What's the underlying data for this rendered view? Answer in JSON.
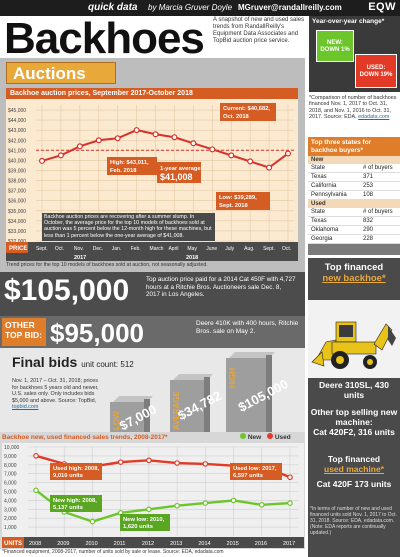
{
  "header": {
    "section": "quick data",
    "byline": "by Marcia Gruver Doyle",
    "email": "MGruver@randallreilly.com",
    "logo": "EQW"
  },
  "title": "Backhoes",
  "intro": "A snapshot of new and used sales trends from RandallReilly's Equipment Data Associates and TopBid auction price service.",
  "yoy": {
    "title": "Year-over-year change*",
    "new_label": "NEW:",
    "new_value": "DOWN 1%",
    "used_label": "USED:",
    "used_value": "DOWN 19%"
  },
  "comparison_note": "*Comparison of number of backhoes financed Nov. 1, 2017 to Oct. 31, 2018, and Nov. 1, 2016 to Oct. 31, 2017. Source: EDA,",
  "comparison_link": "edadata.com",
  "auctions": {
    "tab": "Auctions",
    "subtitle": "Backhoe auction prices, September 2017-October 2018",
    "callout_high": "High: $43,011, Feb. 2018",
    "callout_avg_label": "1-year average:",
    "callout_avg_value": "$41,008",
    "callout_current": "Current: $40,682, Oct. 2018",
    "callout_low": "Low: $39,289, Sept. 2018",
    "note": "Backhoe auction prices are recovering after a summer slump. In October, the average price for the top 10 models of backhoes sold at auction was 5 percent below the 12-month high for these machines, but less than 1 percent below the one-year average of $41,008.",
    "price_label": "PRICE",
    "year_2017": "2017",
    "year_2018": "2018",
    "footnote": "Trend prices for the top 10 models of backhoes sold at auction, not seasonally adjusted."
  },
  "chart_data": [
    {
      "type": "line",
      "title": "Backhoe auction prices, September 2017-October 2018",
      "categories": [
        "Sept.",
        "Oct.",
        "Nov.",
        "Dec.",
        "Jan.",
        "Feb.",
        "March",
        "April",
        "May",
        "June",
        "July",
        "Aug.",
        "Sept.",
        "Oct."
      ],
      "values": [
        39950,
        40500,
        41400,
        42000,
        42200,
        43011,
        42600,
        42300,
        41700,
        41100,
        40500,
        39900,
        39289,
        40682
      ],
      "average": 41008,
      "yticks": [
        "$32,000",
        "$33,000",
        "$34,000",
        "$35,000",
        "$36,000",
        "$37,000",
        "$38,000",
        "$39,000",
        "$40,000",
        "$41,000",
        "$42,000",
        "$43,000",
        "$44,000",
        "$45,000"
      ],
      "ylim": [
        32000,
        45500
      ],
      "xlabel": "",
      "ylabel": "PRICE",
      "grid": true
    },
    {
      "type": "line",
      "title": "Backhoe new, used financed sales trends, 2008-2017*",
      "categories": [
        "2008",
        "2009",
        "2010",
        "2011",
        "2012",
        "2013",
        "2014",
        "2015",
        "2016",
        "2017"
      ],
      "series": [
        {
          "name": "New",
          "color": "#6cc52a",
          "values": [
            5137,
            2700,
            1620,
            2600,
            3000,
            3400,
            3700,
            4000,
            3500,
            3700
          ]
        },
        {
          "name": "Used",
          "color": "#e23a27",
          "values": [
            9010,
            8100,
            7800,
            8300,
            8500,
            8200,
            8100,
            7900,
            7900,
            6597
          ]
        }
      ],
      "yticks": [
        "1,000",
        "2,000",
        "3,000",
        "4,000",
        "5,000",
        "6,000",
        "7,000",
        "8,000",
        "9,000",
        "10,000"
      ],
      "ylim": [
        0,
        10000
      ],
      "xlabel": "",
      "ylabel": "UNITS",
      "legend": "top-right",
      "callouts": {
        "used_high": "Used high: 2008, 9,010 units",
        "used_low": "Used low: 2017, 6,597 units",
        "new_high": "New high: 2008, 5,137 units",
        "new_low": "New low: 2010, 1,620 units"
      }
    }
  ],
  "states": {
    "title": "Top three states for backhoe buyers*",
    "new_label": "New",
    "used_label": "Used",
    "col_state": "State",
    "col_buyers": "# of buyers",
    "new": [
      {
        "state": "Texas",
        "buyers": "371"
      },
      {
        "state": "California",
        "buyers": "253"
      },
      {
        "state": "Pennsylvania",
        "buyers": "108"
      }
    ],
    "used": [
      {
        "state": "Texas",
        "buyers": "832"
      },
      {
        "state": "Oklahoma",
        "buyers": "290"
      },
      {
        "state": "Georgia",
        "buyers": "228"
      }
    ]
  },
  "top_price": {
    "value": "$105,000",
    "desc": "Top auction price paid for a 2014 Cat 450F with 4,727 hours at a Ritchie Bros. Auctioneers sale Dec. 8, 2017 in Los Angeles."
  },
  "other_bid": {
    "label": "OTHER TOP BID:",
    "value": "$95,000",
    "desc": "Deere 410K with 400 hours, Ritchie Bros. sale on May 2."
  },
  "final_bids": {
    "title": "Final bids",
    "unit_count_label": "unit count: 512",
    "desc": "Nov. 1, 2017 – Oct. 31, 2018; prices for backhoes 5 years old and newer, U.S. sales only. Only includes bids $5,000 and above. Source: TopBid,",
    "link": "topbid.com",
    "low_label": "LOW",
    "low_value": "$7,000",
    "avg_label": "AVERAGE",
    "avg_value": "$34,782",
    "high_label": "HIGH",
    "high_value": "$105,000"
  },
  "financed": {
    "top_new_line1": "Top financed",
    "top_new_line2": "new backhoe*",
    "deere": "Deere 310SL, 430 units",
    "other_title": "Other top selling new machine:",
    "other_value": "Cat 420F2, 316 units",
    "top_used_line1": "Top financed",
    "top_used_line2": "used machine*",
    "cat": "Cat 420F 173 units",
    "footnote": "*In terms of number of new and used financed units sold Nov. 1, 2017 to Oct. 31, 2018. Source: EDA, edadata.com. (Note: EDA reports are continually updated.)"
  },
  "bottom": {
    "subtitle": "Backhoe new, used financed sales trends, 2008-2017*",
    "legend_new": "New",
    "legend_used": "Used",
    "units_label": "UNITS",
    "footnote": "*Financed equipment, 2008-2017, number of units sold by sale or lease. Source: EDA, edadata.com"
  },
  "colors": {
    "orange": "#e07d2a",
    "dark_orange": "#d55c22",
    "line_red": "#d8302a",
    "green": "#6cc52a",
    "red": "#e23a27",
    "gray_panel": "#bdbdbd"
  }
}
